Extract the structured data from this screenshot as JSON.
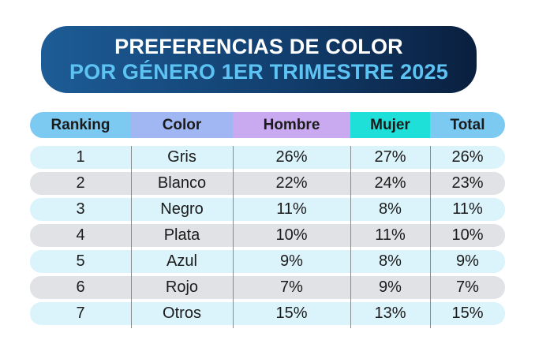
{
  "title": {
    "line1": "PREFERENCIAS DE COLOR",
    "line2": "POR GÉNERO 1ER TRIMESTRE 2025"
  },
  "colors": {
    "banner_start": "#1d5c96",
    "banner_end": "#0a1f3e",
    "title_accent": "#5cc3f3",
    "header_ranking": "#7cc9f2",
    "header_color": "#a1b7f4",
    "header_hombre": "#c9aaf0",
    "header_mujer": "#1fe0d8",
    "header_total": "#7cc9f2",
    "row_odd": "#dbf3fb",
    "row_even": "#e1e2e6"
  },
  "chart_data": {
    "type": "table",
    "title": "PREFERENCIAS DE COLOR POR GÉNERO 1ER TRIMESTRE 2025",
    "columns": [
      "Ranking",
      "Color",
      "Hombre",
      "Mujer",
      "Total"
    ],
    "rows": [
      {
        "ranking": "1",
        "color": "Gris",
        "hombre": "26%",
        "mujer": "27%",
        "total": "26%"
      },
      {
        "ranking": "2",
        "color": "Blanco",
        "hombre": "22%",
        "mujer": "24%",
        "total": "23%"
      },
      {
        "ranking": "3",
        "color": "Negro",
        "hombre": "11%",
        "mujer": "8%",
        "total": "11%"
      },
      {
        "ranking": "4",
        "color": "Plata",
        "hombre": "10%",
        "mujer": "11%",
        "total": "10%"
      },
      {
        "ranking": "5",
        "color": "Azul",
        "hombre": "9%",
        "mujer": "8%",
        "total": "9%"
      },
      {
        "ranking": "6",
        "color": "Rojo",
        "hombre": "7%",
        "mujer": "9%",
        "total": "7%"
      },
      {
        "ranking": "7",
        "color": "Otros",
        "hombre": "15%",
        "mujer": "13%",
        "total": "15%"
      }
    ]
  }
}
